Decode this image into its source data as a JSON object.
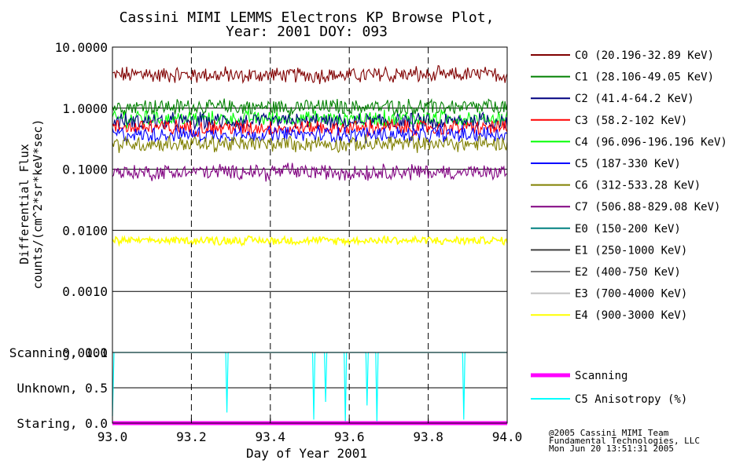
{
  "chart_data": {
    "type": "line",
    "title_line1": "Cassini MIMI LEMMS Electrons KP Browse Plot,",
    "title_line2": "Year: 2001 DOY: 093",
    "xlabel": "Day of Year 2001",
    "ylabel_line1": "Differential Flux",
    "ylabel_line2": "counts/(cm^2*sr*keV*sec)",
    "x_range": [
      93.0,
      94.0
    ],
    "x_ticks": [
      "93.0",
      "93.2",
      "93.4",
      "93.6",
      "93.8",
      "94.0"
    ],
    "x_tick_values": [
      93.0,
      93.2,
      93.4,
      93.6,
      93.8,
      94.0
    ],
    "flux_panel": {
      "scale": "log",
      "y_range": [
        0.0001,
        10.0
      ],
      "y_ticks": [
        "10.0000",
        "1.0000",
        "0.1000",
        "0.0100",
        "0.0010",
        "0.0001"
      ],
      "y_tick_values": [
        10.0,
        1.0,
        0.1,
        0.01,
        0.001,
        0.0001
      ],
      "series": [
        {
          "name": "C0 (20.196-32.89 KeV)",
          "color": "#800000",
          "level": 3.5
        },
        {
          "name": "C1 (28.106-49.05 KeV)",
          "color": "#008000",
          "level": 1.05
        },
        {
          "name": "C2 (41.4-64.2 KeV)",
          "color": "#000080",
          "level": 0.6
        },
        {
          "name": "C3 (58.2-102 KeV)",
          "color": "#ff0000",
          "level": 0.48
        },
        {
          "name": "C4 (96.096-196.196 KeV)",
          "color": "#00ff00",
          "level": 0.68
        },
        {
          "name": "C5 (187-330 KeV)",
          "color": "#0000ff",
          "level": 0.37
        },
        {
          "name": "C6 (312-533.28 KeV)",
          "color": "#808000",
          "level": 0.26
        },
        {
          "name": "C7 (506.88-829.08 KeV)",
          "color": "#800080",
          "level": 0.09
        },
        {
          "name": "E0 (150-200 KeV)",
          "color": "#008080",
          "level": null
        },
        {
          "name": "E1 (250-1000 KeV)",
          "color": "#404040",
          "level": null
        },
        {
          "name": "E2 (400-750 KeV)",
          "color": "#808080",
          "level": null
        },
        {
          "name": "E3 (700-4000 KeV)",
          "color": "#c0c0c0",
          "level": null
        },
        {
          "name": "E4 (900-3000 KeV)",
          "color": "#ffff00",
          "level": 0.0068
        }
      ]
    },
    "mode_panel": {
      "y_range": [
        0.0,
        1.0
      ],
      "y_ticks": [
        "Scanning, 1.0",
        "Unknown, 0.5",
        "Staring, 0.0"
      ],
      "y_tick_values": [
        1.0,
        0.5,
        0.0
      ],
      "series": [
        {
          "name": "Scanning",
          "color": "#ff00ff",
          "value": 0.0
        },
        {
          "name": "C5 Anisotropy (%)",
          "color": "#00ffff",
          "value": 1.0,
          "dips": [
            [
              93.0,
              0.1
            ],
            [
              93.29,
              0.15
            ],
            [
              93.51,
              0.05
            ],
            [
              93.54,
              0.3
            ],
            [
              93.59,
              0.0
            ],
            [
              93.645,
              0.25
            ],
            [
              93.67,
              0.0
            ],
            [
              93.89,
              0.05
            ]
          ]
        }
      ]
    }
  },
  "footer": {
    "line1": "@2005 Cassini MIMI Team",
    "line2": "Fundamental Technologies, LLC",
    "line3": "Mon Jun 20 13:51:31 2005"
  }
}
